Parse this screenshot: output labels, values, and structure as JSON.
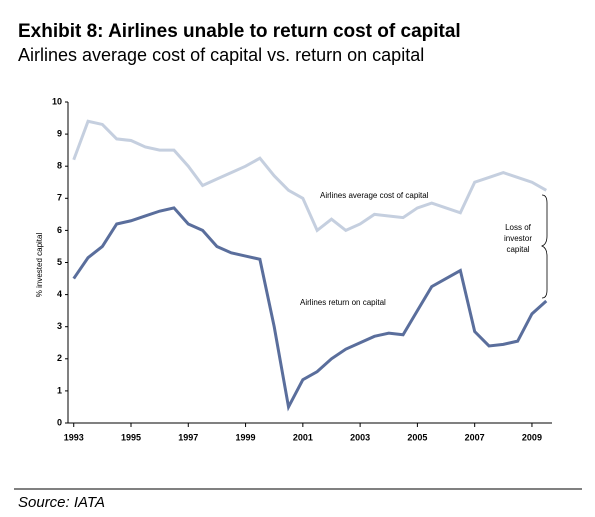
{
  "chart_data": {
    "type": "line",
    "title": "Exhibit 8:  Airlines unable to return cost of capital",
    "subtitle": "Airlines average cost of capital vs. return on capital",
    "y_label": "% invested capital",
    "source": "Source: IATA",
    "x": [
      1993,
      1993.5,
      1994,
      1994.5,
      1995,
      1995.5,
      1996,
      1996.5,
      1997,
      1997.5,
      1998,
      1998.5,
      1999,
      1999.5,
      2000,
      2000.5,
      2001,
      2001.5,
      2002,
      2002.5,
      2003,
      2003.5,
      2004,
      2004.5,
      2005,
      2005.5,
      2006,
      2006.5,
      2007,
      2007.5,
      2008,
      2008.5,
      2009,
      2009.5
    ],
    "series": [
      {
        "name": "Airlines average cost of capital",
        "color": "#c5cfdf",
        "values": [
          8.2,
          9.4,
          9.3,
          8.85,
          8.8,
          8.6,
          8.5,
          8.5,
          8.0,
          7.4,
          7.6,
          7.8,
          8.0,
          8.25,
          7.7,
          7.25,
          7.0,
          6.0,
          6.35,
          6.0,
          6.2,
          6.5,
          6.45,
          6.4,
          6.7,
          6.85,
          6.7,
          6.55,
          7.5,
          7.65,
          7.8,
          7.65,
          7.5,
          7.25
        ]
      },
      {
        "name": "Airlines return on capital",
        "color": "#5a6e9c",
        "values": [
          4.5,
          5.15,
          5.5,
          6.2,
          6.3,
          6.45,
          6.6,
          6.7,
          6.2,
          6.0,
          5.5,
          5.3,
          5.2,
          5.1,
          3.0,
          0.5,
          1.35,
          1.6,
          2.0,
          2.3,
          2.5,
          2.7,
          2.8,
          2.75,
          3.5,
          4.25,
          4.5,
          4.75,
          2.85,
          2.4,
          2.45,
          2.55,
          3.4,
          3.8
        ]
      }
    ],
    "annotation": [
      "Loss of",
      "investor",
      "capital"
    ],
    "xlim": [
      1992.8,
      2009.7
    ],
    "xticks": [
      1993,
      1995,
      1997,
      1999,
      2001,
      2003,
      2005,
      2007,
      2009
    ],
    "ylim": [
      0,
      10
    ],
    "yticks": [
      0,
      1,
      2,
      3,
      4,
      5,
      6,
      7,
      8,
      9,
      10
    ]
  }
}
